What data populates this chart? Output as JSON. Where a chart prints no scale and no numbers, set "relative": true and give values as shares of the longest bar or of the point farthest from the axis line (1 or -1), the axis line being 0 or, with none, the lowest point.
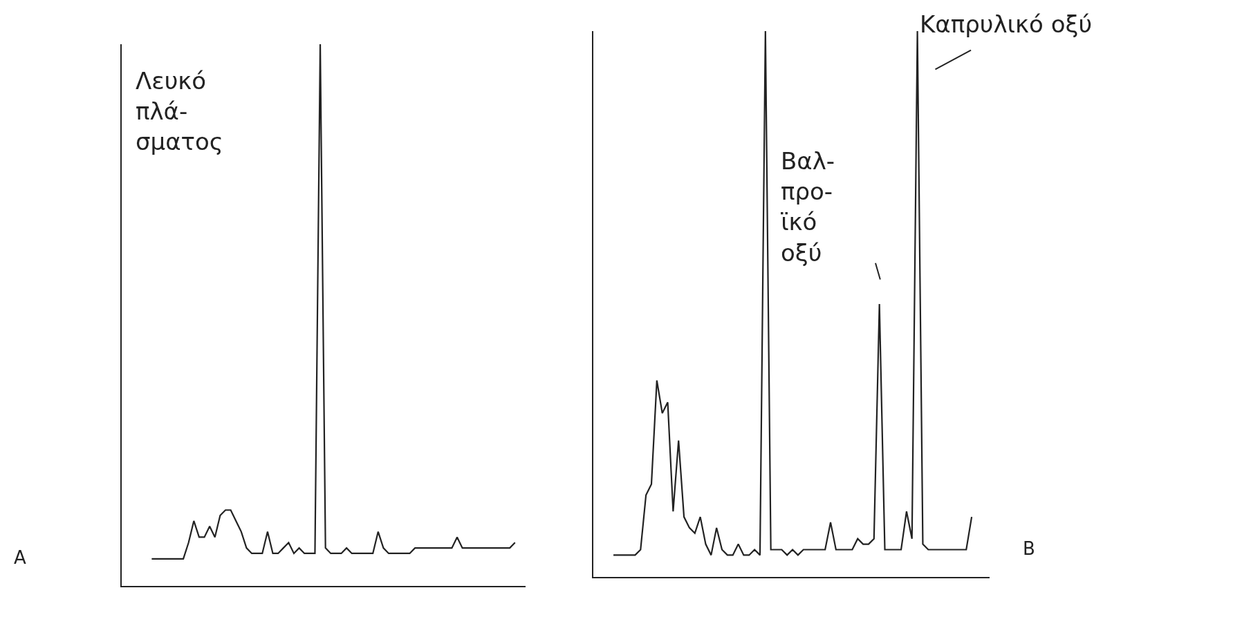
{
  "chart_data": [
    {
      "type": "line",
      "relative": true,
      "color": "#222222",
      "marker": "none",
      "categories": [
        null,
        null,
        null,
        null,
        null,
        null,
        null,
        null,
        null,
        null,
        null,
        null,
        null,
        null,
        null,
        null,
        null,
        null,
        null,
        null,
        null,
        null,
        null,
        null,
        null,
        null,
        null,
        null,
        null,
        null,
        null,
        null,
        null,
        null,
        null,
        null,
        null,
        null,
        null,
        null,
        null,
        null,
        null,
        null,
        null,
        null,
        null,
        null,
        null,
        null,
        null,
        null,
        null,
        null,
        null,
        null,
        null,
        null,
        null,
        null,
        null,
        null,
        null,
        null,
        null,
        null,
        null,
        null,
        null,
        null
      ],
      "values": [
        0.05,
        0.05,
        0.05,
        0.05,
        0.05,
        0.05,
        0.05,
        0.08,
        0.12,
        0.09,
        0.09,
        0.11,
        0.09,
        0.13,
        0.14,
        0.14,
        0.12,
        0.1,
        0.07,
        0.06,
        0.06,
        0.06,
        0.1,
        0.06,
        0.06,
        0.07,
        0.08,
        0.06,
        0.07,
        0.06,
        0.06,
        0.06,
        1,
        0.07,
        0.06,
        0.06,
        0.06,
        0.07,
        0.06,
        0.06,
        0.06,
        0.06,
        0.06,
        0.1,
        0.07,
        0.06,
        0.06,
        0.06,
        0.06,
        0.06,
        0.07,
        0.07,
        0.07,
        0.07,
        0.07,
        0.07,
        0.07,
        0.07,
        0.09,
        0.07,
        0.07,
        0.07,
        0.07,
        0.07,
        0.07,
        0.07,
        0.07,
        0.07,
        0.07,
        0.08
      ],
      "annotations": [
        "Λευκό\nπλά-\nσματος",
        "A"
      ]
    },
    {
      "type": "line",
      "relative": true,
      "color": "#222222",
      "marker": "none",
      "categories": [
        null,
        null,
        null,
        null,
        null,
        null,
        null,
        null,
        null,
        null,
        null,
        null,
        null,
        null,
        null,
        null,
        null,
        null,
        null,
        null,
        null,
        null,
        null,
        null,
        null,
        null,
        null,
        null,
        null,
        null,
        null,
        null,
        null,
        null,
        null,
        null,
        null,
        null,
        null,
        null,
        null,
        null,
        null,
        null,
        null,
        null,
        null,
        null,
        null,
        null,
        null,
        null,
        null,
        null,
        null,
        null,
        null,
        null,
        null,
        null,
        null,
        null,
        null,
        null,
        null,
        null,
        null
      ],
      "values": [
        0.04,
        0.04,
        0.04,
        0.04,
        0.04,
        0.05,
        0.15,
        0.17,
        0.36,
        0.3,
        0.32,
        0.12,
        0.25,
        0.11,
        0.09,
        0.08,
        0.11,
        0.06,
        0.04,
        0.09,
        0.05,
        0.04,
        0.04,
        0.06,
        0.04,
        0.04,
        0.05,
        0.04,
        1,
        0.05,
        0.05,
        0.05,
        0.04,
        0.05,
        0.04,
        0.05,
        0.05,
        0.05,
        0.05,
        0.05,
        0.1,
        0.05,
        0.05,
        0.05,
        0.05,
        0.07,
        0.06,
        0.06,
        0.07,
        0.5,
        0.05,
        0.05,
        0.05,
        0.05,
        0.12,
        0.07,
        1,
        0.06,
        0.05,
        0.05,
        0.05,
        0.05,
        0.05,
        0.05,
        0.05,
        0.05,
        0.11
      ],
      "annotations": [
        "Βαλ-\nπρο-\nϊκό\nοξύ",
        "Καπρυλικό οξύ",
        "B"
      ]
    }
  ]
}
